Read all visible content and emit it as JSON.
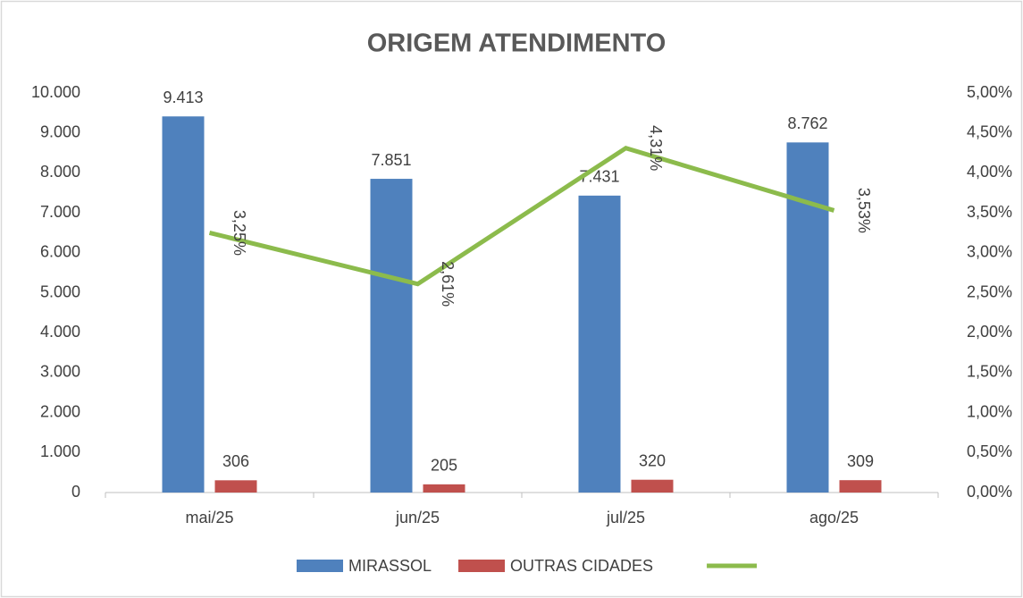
{
  "chart_data": {
    "type": "bar",
    "title": "ORIGEM ATENDIMENTO",
    "categories": [
      "mai/25",
      "jun/25",
      "jul/25",
      "ago/25"
    ],
    "series": [
      {
        "name": "MIRASSOL",
        "color": "#4f81bd",
        "values": [
          9413,
          7851,
          7431,
          8762
        ],
        "value_labels": [
          "9.413",
          "7.851",
          "7.431",
          "8.762"
        ]
      },
      {
        "name": "OUTRAS CIDADES",
        "color": "#c0504d",
        "values": [
          306,
          205,
          320,
          309
        ]
      },
      {
        "type": "line",
        "axis": "y2",
        "color": "#8cbb4c",
        "values": [
          3.25,
          2.61,
          4.31,
          3.53
        ],
        "value_labels": [
          "3,25%",
          "2,61%",
          "4,31%",
          "3,53%"
        ]
      }
    ],
    "ylim": [
      0,
      10000
    ],
    "yticks": [
      0,
      {
        "value": 1000,
        "label": "1.000"
      },
      {
        "value": 2000,
        "label": "2.000"
      },
      {
        "value": 3000,
        "label": "3.000"
      },
      {
        "value": 4000,
        "label": "4.000"
      },
      {
        "value": 5000,
        "label": "5.000"
      },
      {
        "value": 6000,
        "label": "6.000"
      },
      {
        "value": 7000,
        "label": "7.000"
      },
      {
        "value": 8000,
        "label": "8.000"
      },
      {
        "value": 9000,
        "label": "9.000"
      },
      {
        "value": 10000,
        "label": "10.000"
      }
    ],
    "y2lim": [
      0,
      5
    ],
    "y2ticks": [
      {
        "value": 0,
        "label": "0,00%"
      },
      {
        "value": 0.5,
        "label": "0,50%"
      },
      {
        "value": 1,
        "label": "1,00%"
      },
      {
        "value": 1.5,
        "label": "1,50%"
      },
      {
        "value": 2,
        "label": "2,00%"
      },
      {
        "value": 2.5,
        "label": "2,50%"
      },
      {
        "value": 3,
        "label": "3,00%"
      },
      {
        "value": 3.5,
        "label": "3,50%"
      },
      {
        "value": 4,
        "label": "4,00%"
      },
      {
        "value": 4.5,
        "label": "4,50%"
      },
      {
        "value": 5,
        "label": "5,00%"
      }
    ],
    "legend": "bottom",
    "grid": false
  }
}
